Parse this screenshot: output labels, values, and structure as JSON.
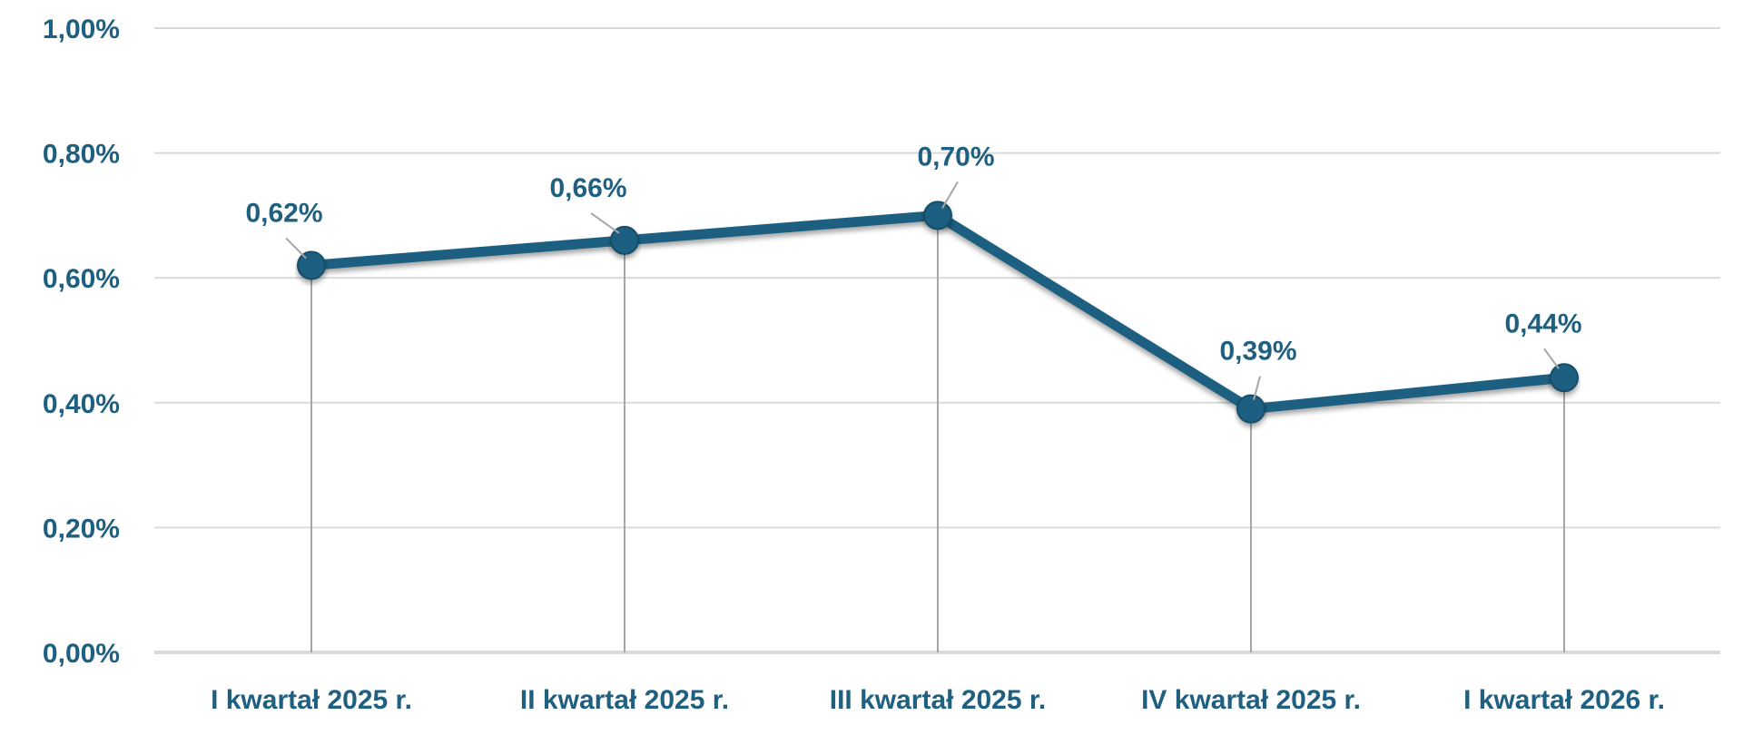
{
  "colors": {
    "series": "#1d5f80",
    "text": "#1f5f7f",
    "grid": "#d9d9d9",
    "drop_lines": "#a6a6a6"
  },
  "chart_data": {
    "type": "line",
    "categories": [
      "I kwartał 2025 r.",
      "II kwartał 2025 r.",
      "III kwartał 2025 r.",
      "IV kwartał 2025 r.",
      "I kwartał 2026 r."
    ],
    "series": [
      {
        "values": [
          0.62,
          0.66,
          0.7,
          0.39,
          0.44
        ]
      }
    ],
    "data_labels": [
      "0,62%",
      "0,66%",
      "0,70%",
      "0,39%",
      "0,44%"
    ],
    "ylim": [
      0,
      1.0
    ],
    "yticks": [
      0,
      0.2,
      0.4,
      0.6,
      0.8,
      1.0
    ],
    "ytick_labels": [
      "0,00%",
      "0,20%",
      "0,40%",
      "0,60%",
      "0,80%",
      "1,00%"
    ],
    "grid": true,
    "drop_lines": true,
    "legend": "none"
  }
}
